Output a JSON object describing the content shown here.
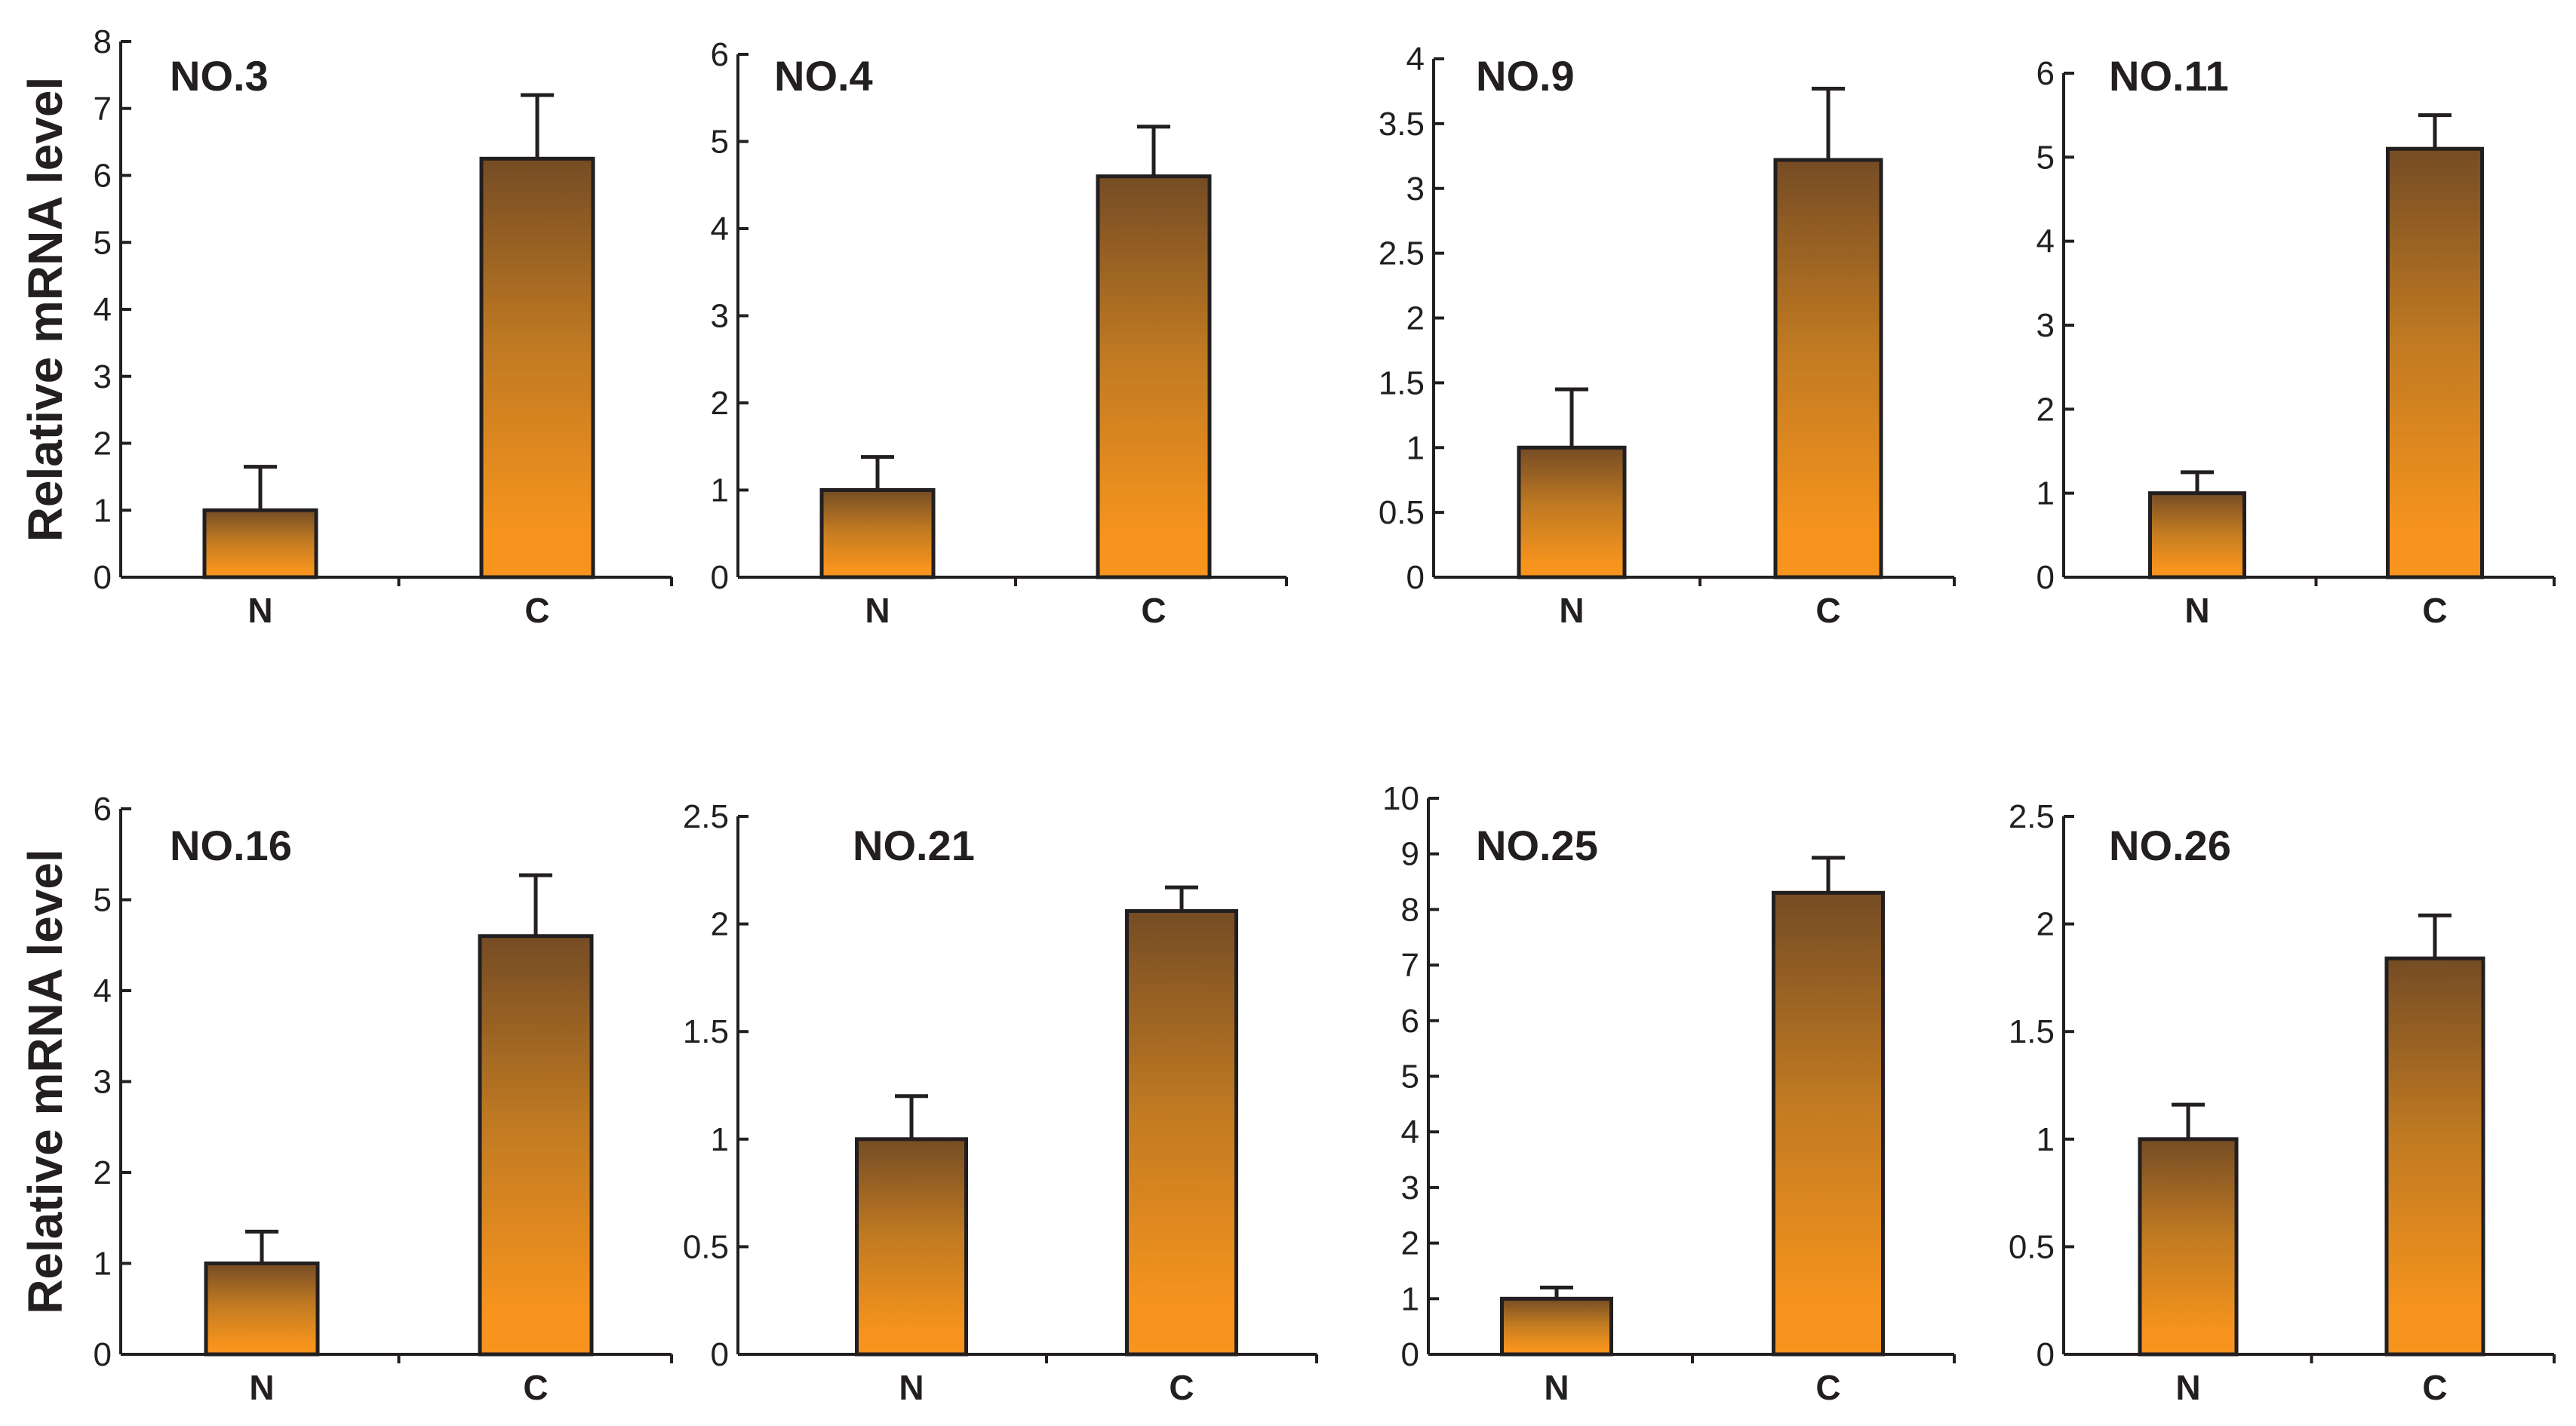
{
  "figure": {
    "ylabel": "Relative mRNA level",
    "bar_gradient": {
      "top": "#754c24",
      "mid": "#c07a22",
      "bottom": "#f7941d"
    },
    "ink": "#231f20"
  },
  "chart_data": [
    {
      "type": "bar",
      "title": "NO.3",
      "categories": [
        "N",
        "C"
      ],
      "values": [
        1.0,
        6.25
      ],
      "error": [
        0.65,
        0.95
      ],
      "ylim": [
        0,
        8
      ],
      "yticks": [
        0,
        1,
        2,
        3,
        4,
        5,
        6,
        7,
        8
      ],
      "ylabel": "Relative mRNA level"
    },
    {
      "type": "bar",
      "title": "NO.4",
      "categories": [
        "N",
        "C"
      ],
      "values": [
        1.0,
        4.6
      ],
      "error": [
        0.38,
        0.57
      ],
      "ylim": [
        0,
        6
      ],
      "yticks": [
        0,
        1,
        2,
        3,
        4,
        5,
        6
      ]
    },
    {
      "type": "bar",
      "title": "NO.9",
      "categories": [
        "N",
        "C"
      ],
      "values": [
        1.0,
        3.22
      ],
      "error": [
        0.45,
        0.55
      ],
      "ylim": [
        0,
        4
      ],
      "yticks": [
        0,
        0.5,
        1,
        1.5,
        2,
        2.5,
        3,
        3.5,
        4
      ]
    },
    {
      "type": "bar",
      "title": "NO.11",
      "categories": [
        "N",
        "C"
      ],
      "values": [
        1.0,
        5.1
      ],
      "error": [
        0.25,
        0.4
      ],
      "ylim": [
        0,
        6
      ],
      "yticks": [
        0,
        1,
        2,
        3,
        4,
        5,
        6
      ]
    },
    {
      "type": "bar",
      "title": "NO.16",
      "categories": [
        "N",
        "C"
      ],
      "values": [
        1.0,
        4.6
      ],
      "error": [
        0.35,
        0.67
      ],
      "ylim": [
        0,
        6
      ],
      "yticks": [
        0,
        1,
        2,
        3,
        4,
        5,
        6
      ],
      "ylabel": "Relative mRNA level"
    },
    {
      "type": "bar",
      "title": "NO.21",
      "categories": [
        "N",
        "C"
      ],
      "values": [
        1.0,
        2.06
      ],
      "error": [
        0.2,
        0.11
      ],
      "ylim": [
        0,
        2.5
      ],
      "yticks": [
        0,
        0.5,
        1,
        1.5,
        2,
        2.5
      ]
    },
    {
      "type": "bar",
      "title": "NO.25",
      "categories": [
        "N",
        "C"
      ],
      "values": [
        1.0,
        8.3
      ],
      "error": [
        0.2,
        0.63
      ],
      "ylim": [
        0,
        10
      ],
      "yticks": [
        0,
        1,
        2,
        3,
        4,
        5,
        6,
        7,
        8,
        9,
        10
      ]
    },
    {
      "type": "bar",
      "title": "NO.26",
      "categories": [
        "N",
        "C"
      ],
      "values": [
        1.0,
        1.84
      ],
      "error": [
        0.16,
        0.2
      ],
      "ylim": [
        0,
        2.5
      ],
      "yticks": [
        0,
        0.5,
        1,
        1.5,
        2,
        2.5
      ]
    }
  ]
}
